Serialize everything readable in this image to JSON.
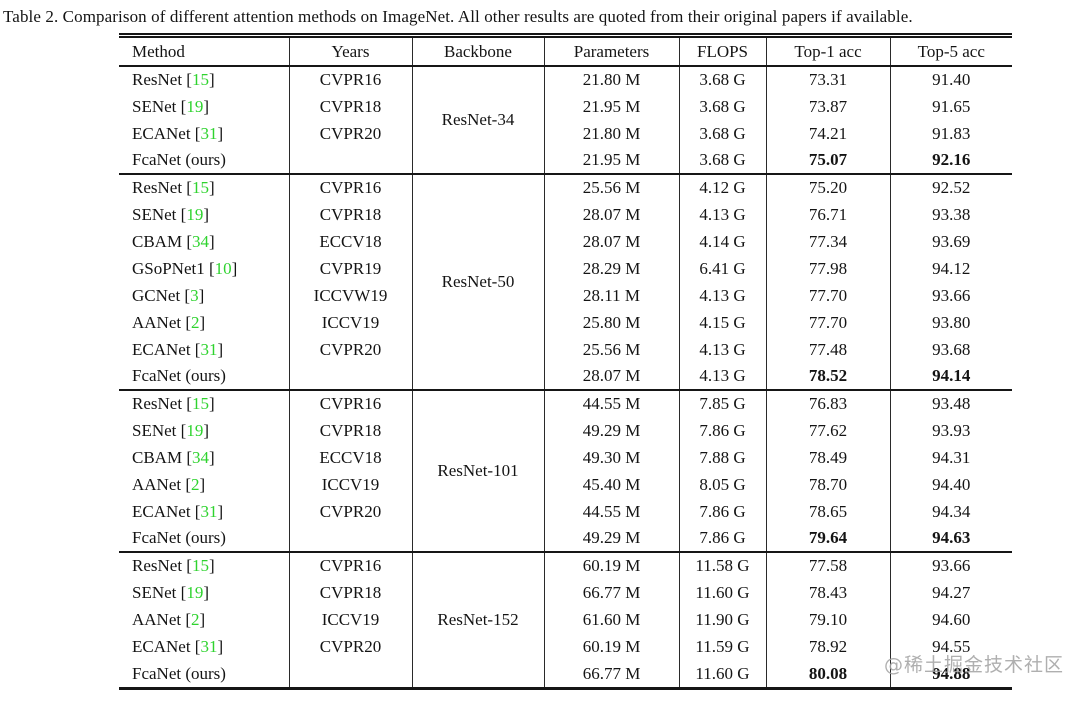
{
  "page": {
    "watermark": "@稀土掘金技术社区",
    "watermark_color": "#a4a4a4",
    "background_color": "#ffffff"
  },
  "caption": "Table 2. Comparison of different attention methods on ImageNet. All other results are quoted from their original papers if available.",
  "table": {
    "headers": [
      "Method",
      "Years",
      "Backbone",
      "Parameters",
      "FLOPS",
      "Top-1 acc",
      "Top-5 acc"
    ],
    "citation_color": "#2ed32e",
    "citation_open_bracket": "[",
    "citation_close_bracket": "]",
    "groups": [
      {
        "backbone": "ResNet-34",
        "rows": [
          {
            "method": "ResNet",
            "cite": "15",
            "years": "CVPR16",
            "params": "21.80 M",
            "flops": "3.68 G",
            "top1": "73.31",
            "top5": "91.40",
            "bold": false
          },
          {
            "method": "SENet",
            "cite": "19",
            "years": "CVPR18",
            "params": "21.95 M",
            "flops": "3.68 G",
            "top1": "73.87",
            "top5": "91.65",
            "bold": false
          },
          {
            "method": "ECANet",
            "cite": "31",
            "years": "CVPR20",
            "params": "21.80 M",
            "flops": "3.68 G",
            "top1": "74.21",
            "top5": "91.83",
            "bold": false
          },
          {
            "method": "FcaNet (ours)",
            "cite": null,
            "years": "",
            "params": "21.95 M",
            "flops": "3.68 G",
            "top1": "75.07",
            "top5": "92.16",
            "bold": true
          }
        ]
      },
      {
        "backbone": "ResNet-50",
        "rows": [
          {
            "method": "ResNet",
            "cite": "15",
            "years": "CVPR16",
            "params": "25.56 M",
            "flops": "4.12 G",
            "top1": "75.20",
            "top5": "92.52",
            "bold": false
          },
          {
            "method": "SENet",
            "cite": "19",
            "years": "CVPR18",
            "params": "28.07 M",
            "flops": "4.13 G",
            "top1": "76.71",
            "top5": "93.38",
            "bold": false
          },
          {
            "method": "CBAM",
            "cite": "34",
            "years": "ECCV18",
            "params": "28.07 M",
            "flops": "4.14 G",
            "top1": "77.34",
            "top5": "93.69",
            "bold": false
          },
          {
            "method": "GSoPNet1",
            "cite": "10",
            "years": "CVPR19",
            "params": "28.29 M",
            "flops": "6.41 G",
            "top1": "77.98",
            "top5": "94.12",
            "bold": false
          },
          {
            "method": "GCNet",
            "cite": "3",
            "years": "ICCVW19",
            "params": "28.11 M",
            "flops": "4.13 G",
            "top1": "77.70",
            "top5": "93.66",
            "bold": false
          },
          {
            "method": "AANet",
            "cite": "2",
            "years": "ICCV19",
            "params": "25.80 M",
            "flops": "4.15 G",
            "top1": "77.70",
            "top5": "93.80",
            "bold": false
          },
          {
            "method": "ECANet",
            "cite": "31",
            "years": "CVPR20",
            "params": "25.56 M",
            "flops": "4.13 G",
            "top1": "77.48",
            "top5": "93.68",
            "bold": false
          },
          {
            "method": "FcaNet (ours)",
            "cite": null,
            "years": "",
            "params": "28.07 M",
            "flops": "4.13 G",
            "top1": "78.52",
            "top5": "94.14",
            "bold": true
          }
        ]
      },
      {
        "backbone": "ResNet-101",
        "rows": [
          {
            "method": "ResNet",
            "cite": "15",
            "years": "CVPR16",
            "params": "44.55 M",
            "flops": "7.85 G",
            "top1": "76.83",
            "top5": "93.48",
            "bold": false
          },
          {
            "method": "SENet",
            "cite": "19",
            "years": "CVPR18",
            "params": "49.29 M",
            "flops": "7.86 G",
            "top1": "77.62",
            "top5": "93.93",
            "bold": false
          },
          {
            "method": "CBAM",
            "cite": "34",
            "years": "ECCV18",
            "params": "49.30 M",
            "flops": "7.88 G",
            "top1": "78.49",
            "top5": "94.31",
            "bold": false
          },
          {
            "method": "AANet",
            "cite": "2",
            "years": "ICCV19",
            "params": "45.40 M",
            "flops": "8.05 G",
            "top1": "78.70",
            "top5": "94.40",
            "bold": false
          },
          {
            "method": "ECANet",
            "cite": "31",
            "years": "CVPR20",
            "params": "44.55 M",
            "flops": "7.86 G",
            "top1": "78.65",
            "top5": "94.34",
            "bold": false
          },
          {
            "method": "FcaNet (ours)",
            "cite": null,
            "years": "",
            "params": "49.29 M",
            "flops": "7.86 G",
            "top1": "79.64",
            "top5": "94.63",
            "bold": true
          }
        ]
      },
      {
        "backbone": "ResNet-152",
        "rows": [
          {
            "method": "ResNet",
            "cite": "15",
            "years": "CVPR16",
            "params": "60.19 M",
            "flops": "11.58 G",
            "top1": "77.58",
            "top5": "93.66",
            "bold": false
          },
          {
            "method": "SENet",
            "cite": "19",
            "years": "CVPR18",
            "params": "66.77 M",
            "flops": "11.60 G",
            "top1": "78.43",
            "top5": "94.27",
            "bold": false
          },
          {
            "method": "AANet",
            "cite": "2",
            "years": "ICCV19",
            "params": "61.60 M",
            "flops": "11.90 G",
            "top1": "79.10",
            "top5": "94.60",
            "bold": false
          },
          {
            "method": "ECANet",
            "cite": "31",
            "years": "CVPR20",
            "params": "60.19 M",
            "flops": "11.59 G",
            "top1": "78.92",
            "top5": "94.55",
            "bold": false
          },
          {
            "method": "FcaNet (ours)",
            "cite": null,
            "years": "",
            "params": "66.77 M",
            "flops": "11.60 G",
            "top1": "80.08",
            "top5": "94.88",
            "bold": true
          }
        ]
      }
    ]
  }
}
